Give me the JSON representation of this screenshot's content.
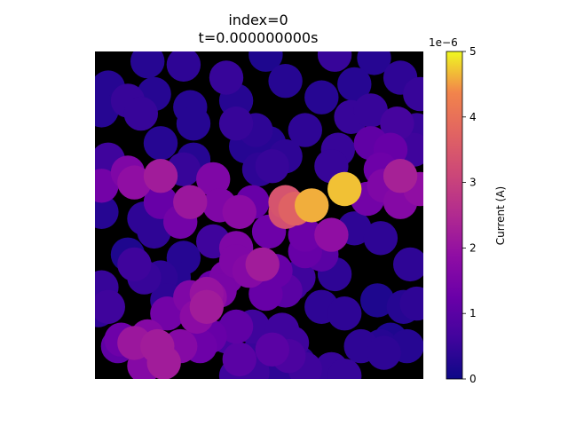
{
  "chart_data": {
    "type": "scatter",
    "title": "index=0",
    "subtitle": "t=0.000000000s",
    "xlim": [
      0,
      1
    ],
    "ylim": [
      0,
      1
    ],
    "axes_visible": false,
    "background": "#000000",
    "colormap": "plasma",
    "colorbar": {
      "label": "Current (A)",
      "multiplier": "1e−6",
      "min": 0,
      "max": 5,
      "ticks": [
        0,
        1,
        2,
        3,
        4,
        5
      ],
      "tick_labels": [
        "0",
        "1",
        "2",
        "3",
        "4",
        "5"
      ]
    },
    "circle_radius": 0.052,
    "points": [
      [
        0.16,
        0.97,
        0.3
      ],
      [
        0.27,
        0.96,
        0.4
      ],
      [
        0.52,
        0.99,
        0.2
      ],
      [
        0.73,
        0.99,
        0.5
      ],
      [
        0.85,
        0.98,
        0.3
      ],
      [
        0.93,
        0.92,
        0.4
      ],
      [
        0.04,
        0.89,
        0.3
      ],
      [
        0.1,
        0.85,
        0.5
      ],
      [
        0.18,
        0.87,
        0.3
      ],
      [
        0.29,
        0.83,
        0.3
      ],
      [
        0.4,
        0.92,
        0.5
      ],
      [
        0.43,
        0.85,
        0.3
      ],
      [
        0.58,
        0.91,
        0.3
      ],
      [
        0.69,
        0.86,
        0.3
      ],
      [
        0.79,
        0.9,
        0.3
      ],
      [
        0.99,
        0.87,
        0.5
      ],
      [
        0.02,
        0.82,
        0.3
      ],
      [
        0.14,
        0.81,
        0.5
      ],
      [
        0.3,
        0.78,
        0.3
      ],
      [
        0.43,
        0.78,
        0.5
      ],
      [
        0.49,
        0.76,
        0.4
      ],
      [
        0.64,
        0.76,
        0.4
      ],
      [
        0.78,
        0.8,
        0.5
      ],
      [
        0.84,
        0.82,
        0.5
      ],
      [
        0.92,
        0.78,
        0.7
      ],
      [
        0.98,
        0.76,
        0.5
      ],
      [
        0.2,
        0.72,
        0.3
      ],
      [
        0.3,
        0.67,
        0.3
      ],
      [
        0.46,
        0.71,
        0.3
      ],
      [
        0.53,
        0.72,
        0.3
      ],
      [
        0.58,
        0.68,
        0.4
      ],
      [
        0.74,
        0.7,
        0.5
      ],
      [
        0.84,
        0.72,
        1.1
      ],
      [
        0.9,
        0.7,
        1.2
      ],
      [
        0.97,
        0.7,
        0.6
      ],
      [
        0.04,
        0.67,
        0.6
      ],
      [
        0.1,
        0.63,
        1.6
      ],
      [
        0.12,
        0.6,
        1.9
      ],
      [
        0.02,
        0.59,
        1.4
      ],
      [
        0.2,
        0.62,
        2.2
      ],
      [
        0.27,
        0.64,
        0.5
      ],
      [
        0.36,
        0.61,
        1.6
      ],
      [
        0.5,
        0.64,
        0.4
      ],
      [
        0.54,
        0.65,
        0.5
      ],
      [
        0.72,
        0.65,
        0.5
      ],
      [
        0.76,
        0.58,
        4.7
      ],
      [
        0.87,
        0.64,
        1.3
      ],
      [
        0.93,
        0.62,
        2.3
      ],
      [
        0.99,
        0.58,
        1.9
      ],
      [
        0.02,
        0.51,
        0.3
      ],
      [
        0.15,
        0.49,
        0.4
      ],
      [
        0.2,
        0.54,
        1.2
      ],
      [
        0.29,
        0.54,
        2.1
      ],
      [
        0.38,
        0.53,
        1.6
      ],
      [
        0.44,
        0.51,
        1.8
      ],
      [
        0.48,
        0.54,
        1.2
      ],
      [
        0.58,
        0.54,
        3.4
      ],
      [
        0.61,
        0.52,
        3.7
      ],
      [
        0.66,
        0.53,
        4.6
      ],
      [
        0.83,
        0.55,
        1.4
      ],
      [
        0.88,
        0.59,
        1.6
      ],
      [
        0.93,
        0.54,
        1.7
      ],
      [
        0.18,
        0.45,
        0.4
      ],
      [
        0.26,
        0.48,
        1.4
      ],
      [
        0.36,
        0.42,
        0.6
      ],
      [
        0.43,
        0.4,
        1.6
      ],
      [
        0.53,
        0.45,
        1.3
      ],
      [
        0.64,
        0.44,
        1.3
      ],
      [
        0.72,
        0.44,
        1.9
      ],
      [
        0.79,
        0.46,
        0.4
      ],
      [
        0.87,
        0.43,
        0.4
      ],
      [
        0.1,
        0.38,
        0.2
      ],
      [
        0.12,
        0.35,
        0.6
      ],
      [
        0.27,
        0.37,
        0.3
      ],
      [
        0.4,
        0.31,
        1.5
      ],
      [
        0.43,
        0.36,
        1.6
      ],
      [
        0.47,
        0.33,
        1.7
      ],
      [
        0.51,
        0.35,
        2.2
      ],
      [
        0.55,
        0.33,
        1.2
      ],
      [
        0.64,
        0.39,
        1.2
      ],
      [
        0.69,
        0.38,
        1.0
      ],
      [
        0.15,
        0.31,
        0.5
      ],
      [
        0.2,
        0.31,
        0.4
      ],
      [
        0.24,
        0.31,
        0.3
      ],
      [
        0.36,
        0.28,
        1.2
      ],
      [
        0.6,
        0.29,
        0.6
      ],
      [
        0.62,
        0.31,
        0.6
      ],
      [
        0.73,
        0.32,
        0.4
      ],
      [
        0.96,
        0.35,
        0.4
      ],
      [
        0.02,
        0.28,
        0.5
      ],
      [
        0.04,
        0.22,
        0.6
      ],
      [
        0.01,
        0.21,
        0.4
      ],
      [
        0.22,
        0.24,
        0.4
      ],
      [
        0.29,
        0.25,
        1.6
      ],
      [
        0.35,
        0.25,
        1.9
      ],
      [
        0.38,
        0.27,
        1.5
      ],
      [
        0.52,
        0.26,
        1.2
      ],
      [
        0.58,
        0.27,
        1.0
      ],
      [
        0.69,
        0.22,
        0.4
      ],
      [
        0.76,
        0.2,
        0.4
      ],
      [
        0.86,
        0.24,
        0.2
      ],
      [
        0.94,
        0.22,
        0.3
      ],
      [
        0.98,
        0.23,
        0.4
      ],
      [
        0.22,
        0.2,
        1.4
      ],
      [
        0.31,
        0.19,
        1.8
      ],
      [
        0.34,
        0.22,
        2.2
      ],
      [
        0.43,
        0.16,
        1.1
      ],
      [
        0.48,
        0.16,
        0.6
      ],
      [
        0.57,
        0.15,
        0.6
      ],
      [
        0.6,
        0.11,
        0.6
      ],
      [
        0.12,
        0.11,
        2.1
      ],
      [
        0.19,
        0.1,
        2.2
      ],
      [
        0.26,
        0.1,
        1.7
      ],
      [
        0.32,
        0.1,
        1.3
      ],
      [
        0.35,
        0.13,
        1.2
      ],
      [
        0.44,
        0.06,
        1.0
      ],
      [
        0.54,
        0.09,
        1.0
      ],
      [
        0.59,
        0.07,
        0.8
      ],
      [
        0.07,
        0.1,
        1.1
      ],
      [
        0.08,
        0.12,
        1.3
      ],
      [
        0.16,
        0.13,
        1.7
      ],
      [
        0.21,
        0.05,
        2.2
      ],
      [
        0.15,
        0.04,
        1.7
      ],
      [
        0.43,
        0.01,
        0.6
      ],
      [
        0.48,
        0.02,
        0.6
      ],
      [
        0.56,
        0.02,
        0.4
      ],
      [
        0.72,
        0.03,
        0.5
      ],
      [
        0.76,
        0.01,
        0.5
      ],
      [
        0.81,
        0.1,
        0.4
      ],
      [
        0.87,
        0.1,
        0.3
      ],
      [
        0.9,
        0.12,
        0.2
      ],
      [
        0.95,
        0.1,
        0.3
      ],
      [
        0.88,
        0.08,
        0.4
      ],
      [
        0.64,
        0.03,
        0.6
      ],
      [
        0.62,
        0.05,
        0.4
      ],
      [
        0.5,
        0.08,
        0.5
      ],
      [
        0.4,
        0.13,
        0.7
      ],
      [
        0.34,
        0.26,
        2.0
      ],
      [
        0.49,
        0.34,
        0.9
      ],
      [
        0.65,
        0.43,
        1.1
      ],
      [
        0.58,
        0.51,
        3.3
      ]
    ]
  }
}
